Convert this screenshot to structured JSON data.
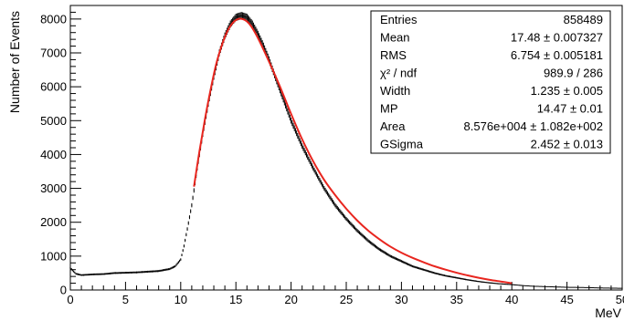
{
  "chart_data": {
    "type": "histogram",
    "title": "",
    "xlabel": "MeV",
    "ylabel": "Number of Events",
    "xlim": [
      0,
      50
    ],
    "ylim": [
      0,
      8400
    ],
    "x_ticks": [
      0,
      5,
      10,
      15,
      20,
      25,
      30,
      35,
      40,
      45,
      50
    ],
    "y_ticks": [
      0,
      1000,
      2000,
      3000,
      4000,
      5000,
      6000,
      7000,
      8000
    ],
    "grid": false,
    "colors": {
      "histogram": "#000000",
      "fit": "#e8261f"
    },
    "histogram": {
      "x": [
        0,
        0.5,
        1,
        2,
        3,
        4,
        5,
        6,
        7,
        8,
        9,
        9.5,
        10,
        10.3,
        10.6,
        11,
        11.5,
        12,
        12.5,
        13,
        13.5,
        14,
        14.5,
        15,
        15.5,
        16,
        16.5,
        17,
        17.5,
        18,
        19,
        20,
        21,
        22,
        23,
        24,
        25,
        26,
        27,
        28,
        29,
        30,
        31,
        32,
        33,
        34,
        35,
        36,
        37,
        38,
        39,
        40,
        41,
        42,
        43,
        44,
        45,
        46,
        47,
        48,
        49,
        50
      ],
      "y": [
        650,
        480,
        440,
        460,
        470,
        500,
        510,
        520,
        540,
        560,
        620,
        700,
        900,
        1300,
        1800,
        2500,
        3600,
        4600,
        5500,
        6300,
        7000,
        7500,
        7850,
        8050,
        8100,
        8050,
        7850,
        7550,
        7200,
        6800,
        5900,
        5000,
        4250,
        3600,
        3000,
        2500,
        2100,
        1750,
        1450,
        1200,
        1000,
        850,
        700,
        600,
        500,
        420,
        360,
        300,
        250,
        210,
        180,
        160,
        130,
        110,
        100,
        90,
        80,
        75,
        70,
        60,
        55,
        50
      ]
    },
    "fit": {
      "name": "",
      "x_range": [
        11.2,
        40
      ],
      "x": [
        11.2,
        11.7,
        12.2,
        12.7,
        13.2,
        13.7,
        14.2,
        14.7,
        15.2,
        15.6,
        16,
        16.4,
        16.9,
        17.5,
        18.2,
        19,
        20,
        21,
        22,
        23,
        24,
        25,
        26,
        27,
        28,
        29,
        30,
        31,
        32,
        33,
        34,
        35,
        36,
        37,
        38,
        39,
        40
      ],
      "y": [
        3050,
        4100,
        5050,
        5900,
        6650,
        7200,
        7620,
        7880,
        8000,
        8000,
        7930,
        7780,
        7500,
        7100,
        6600,
        6000,
        5200,
        4450,
        3800,
        3250,
        2800,
        2400,
        2050,
        1750,
        1500,
        1280,
        1100,
        950,
        820,
        700,
        600,
        510,
        430,
        360,
        300,
        250,
        200
      ]
    },
    "stats": [
      {
        "label": "Entries",
        "value": "858489"
      },
      {
        "label": "Mean",
        "value": "17.48 ± 0.007327"
      },
      {
        "label": "RMS",
        "value": "6.754 ± 0.005181"
      },
      {
        "label": "χ² / ndf",
        "value": "989.9 / 286"
      },
      {
        "label": "Width",
        "value": "1.235 ± 0.005"
      },
      {
        "label": "MP",
        "value": "14.47 ± 0.01"
      },
      {
        "label": "Area",
        "value": "8.576e+004 ± 1.082e+002"
      },
      {
        "label": "GSigma",
        "value": "2.452 ± 0.013"
      }
    ],
    "stats_box_position": "top-right"
  }
}
